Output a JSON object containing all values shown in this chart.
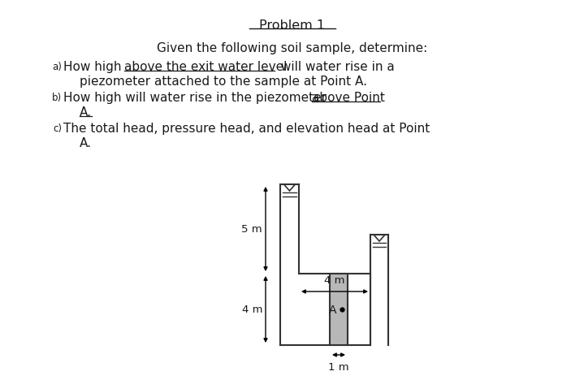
{
  "bg_color": "#ffffff",
  "text_color": "#1a1a1a",
  "title": "Problem 1",
  "intro": "Given the following soil sample, determine:",
  "line_a1_pre": "How high ",
  "line_a1_ul": "above the exit water level",
  "line_a1_post": " will water rise in a",
  "line_a2": "piezometer attached to the sample at Point A.",
  "line_b1_pre": "How high will water rise in the piezometer ",
  "line_b1_ul": "above Point",
  "line_b2_ul": "A.",
  "line_c1": "The total head, pressure head, and elevation head at Point",
  "line_c2": "A.",
  "label_5m": "5 m",
  "label_4m_v": "4 m",
  "label_4m_h": "4 m",
  "label_1m": "1 m",
  "label_A": "A",
  "soil_color": "#b8b8b8",
  "soil_edge_color": "#333333",
  "wall_color": "#333333",
  "nabla_color": "#333333"
}
